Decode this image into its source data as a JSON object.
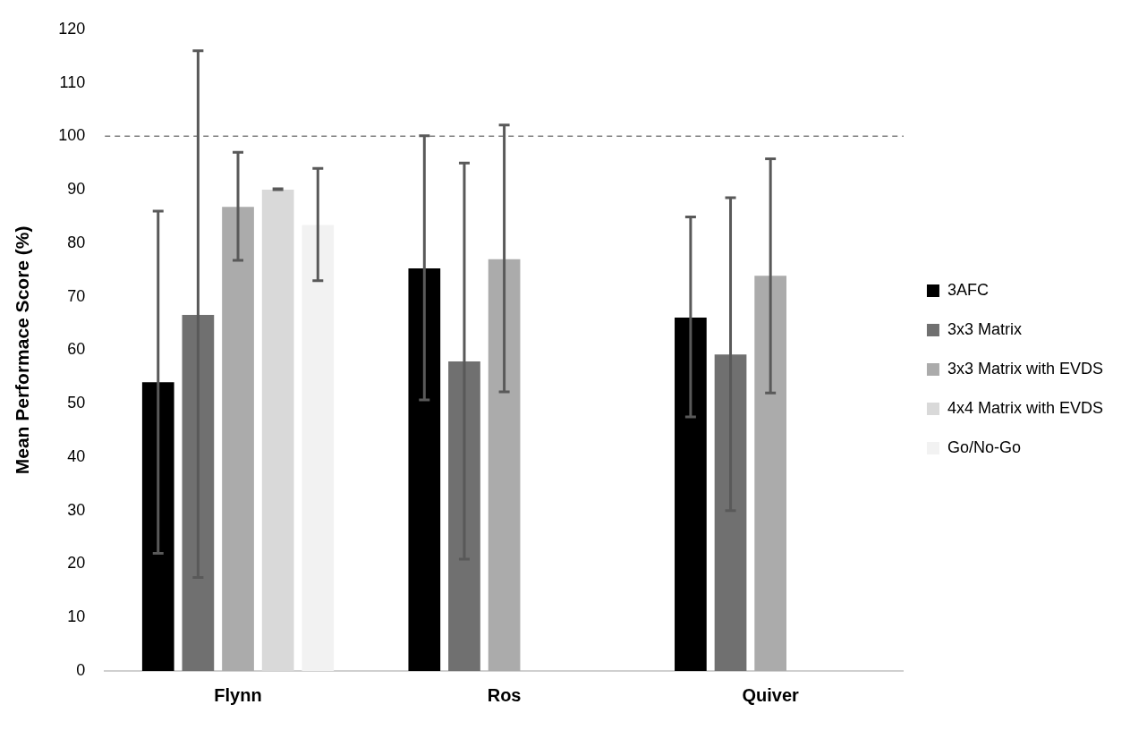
{
  "chart_data": {
    "type": "bar",
    "ylabel": "Mean Performace Score (%)",
    "categories": [
      "Flynn",
      "Ros",
      "Quiver"
    ],
    "series": [
      {
        "name": "3AFC",
        "color": "#000000",
        "values": [
          54,
          75.3,
          66.1
        ],
        "errors": [
          [
            22,
            86
          ],
          [
            50.7,
            100.1
          ],
          [
            47.5,
            84.9
          ]
        ]
      },
      {
        "name": "3x3 Matrix",
        "color": "#707070",
        "values": [
          66.6,
          57.9,
          59.2
        ],
        "errors": [
          [
            17.5,
            116
          ],
          [
            20.9,
            95
          ],
          [
            30,
            88.5
          ]
        ]
      },
      {
        "name": "3x3 Matrix with EVDS",
        "color": "#ababab",
        "values": [
          86.8,
          77,
          73.9
        ],
        "errors": [
          [
            76.8,
            97
          ],
          [
            52.2,
            102.1
          ],
          [
            52,
            95.8
          ]
        ]
      },
      {
        "name": "4x4 Matrix with EVDS",
        "color": "#d9d9d9",
        "values": [
          90,
          null,
          null
        ],
        "errors": [
          [
            90,
            90.2
          ],
          null,
          null
        ]
      },
      {
        "name": "Go/No-Go",
        "color": "#f2f2f2",
        "values": [
          83.4,
          null,
          null
        ],
        "errors": [
          [
            73,
            94
          ],
          null,
          null
        ]
      }
    ],
    "ylim": [
      0,
      120
    ],
    "yticks": [
      0,
      10,
      20,
      30,
      40,
      50,
      60,
      70,
      80,
      90,
      100,
      110,
      120
    ],
    "ref_lines": [
      {
        "axis": "y",
        "value": 100,
        "color": "#808080",
        "line_style": "dashed"
      }
    ],
    "grid": false,
    "legend": "right"
  }
}
